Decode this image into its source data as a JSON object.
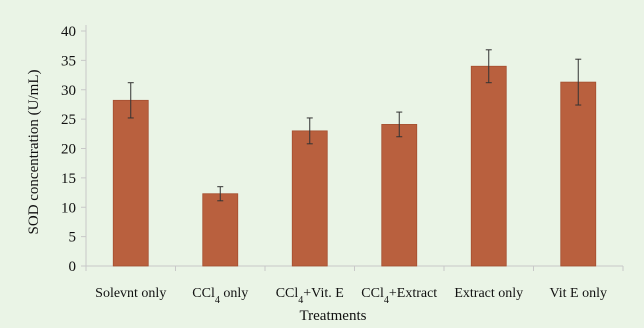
{
  "chart_data": {
    "type": "bar",
    "categories": [
      {
        "label": "Solevnt only",
        "base": "Solevnt only",
        "sub": "",
        "rest": ""
      },
      {
        "label": "CCl4 only",
        "base": "CCl",
        "sub": "4",
        "rest": " only"
      },
      {
        "label": "CCl4+Vit. E",
        "base": "CCl",
        "sub": "4",
        "rest": "+Vit. E"
      },
      {
        "label": "CCl4+Extract",
        "base": "CCl",
        "sub": "4",
        "rest": "+Extract"
      },
      {
        "label": "Extract only",
        "base": "Extract only",
        "sub": "",
        "rest": ""
      },
      {
        "label": "Vit E only",
        "base": "Vit E only",
        "sub": "",
        "rest": ""
      }
    ],
    "series": [
      {
        "values": [
          28.2,
          12.3,
          23.0,
          24.1,
          34.0,
          31.3
        ],
        "errors": [
          3.0,
          1.2,
          2.2,
          2.1,
          2.8,
          3.9
        ]
      }
    ],
    "xlabel": "Treatments",
    "ylabel": "SOD concentration (U/mL)",
    "ylim": [
      0,
      40
    ],
    "yticks": [
      0,
      5,
      10,
      15,
      20,
      25,
      30,
      35,
      40
    ],
    "grid": false,
    "legend": "none",
    "colors": {
      "background": "#eaf4e6",
      "bar": "#b9603e",
      "bar_edge": "#a44f30",
      "axis": "#c8c8c8",
      "error_bar": "#333333"
    }
  }
}
